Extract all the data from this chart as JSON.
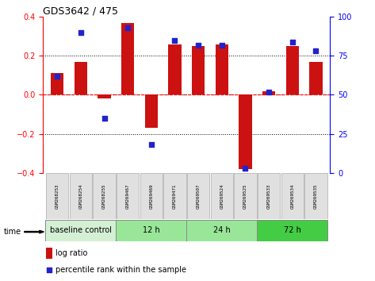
{
  "title": "GDS3642 / 475",
  "samples": [
    "GSM268253",
    "GSM268254",
    "GSM268255",
    "GSM269467",
    "GSM269469",
    "GSM269471",
    "GSM269507",
    "GSM269524",
    "GSM269525",
    "GSM269533",
    "GSM269534",
    "GSM269535"
  ],
  "log_ratio": [
    0.11,
    0.17,
    -0.02,
    0.37,
    -0.17,
    0.26,
    0.25,
    0.26,
    -0.38,
    0.02,
    0.25,
    0.17
  ],
  "percentile_rank": [
    62,
    90,
    35,
    93,
    18,
    85,
    82,
    82,
    3,
    52,
    84,
    78
  ],
  "bar_color": "#cc1111",
  "dot_color": "#2222cc",
  "groups": [
    {
      "label": "baseline control",
      "start": 0,
      "end": 3,
      "color": "#d4f0d4"
    },
    {
      "label": "12 h",
      "start": 3,
      "end": 6,
      "color": "#99e699"
    },
    {
      "label": "24 h",
      "start": 6,
      "end": 9,
      "color": "#99e699"
    },
    {
      "label": "72 h",
      "start": 9,
      "end": 12,
      "color": "#44cc44"
    }
  ],
  "ylim_left": [
    -0.4,
    0.4
  ],
  "ylim_right": [
    0,
    100
  ],
  "yticks_left": [
    -0.4,
    -0.2,
    0.0,
    0.2,
    0.4
  ],
  "yticks_right": [
    0,
    25,
    50,
    75,
    100
  ],
  "legend_log_ratio": "log ratio",
  "legend_percentile": "percentile rank within the sample",
  "time_label": "time"
}
